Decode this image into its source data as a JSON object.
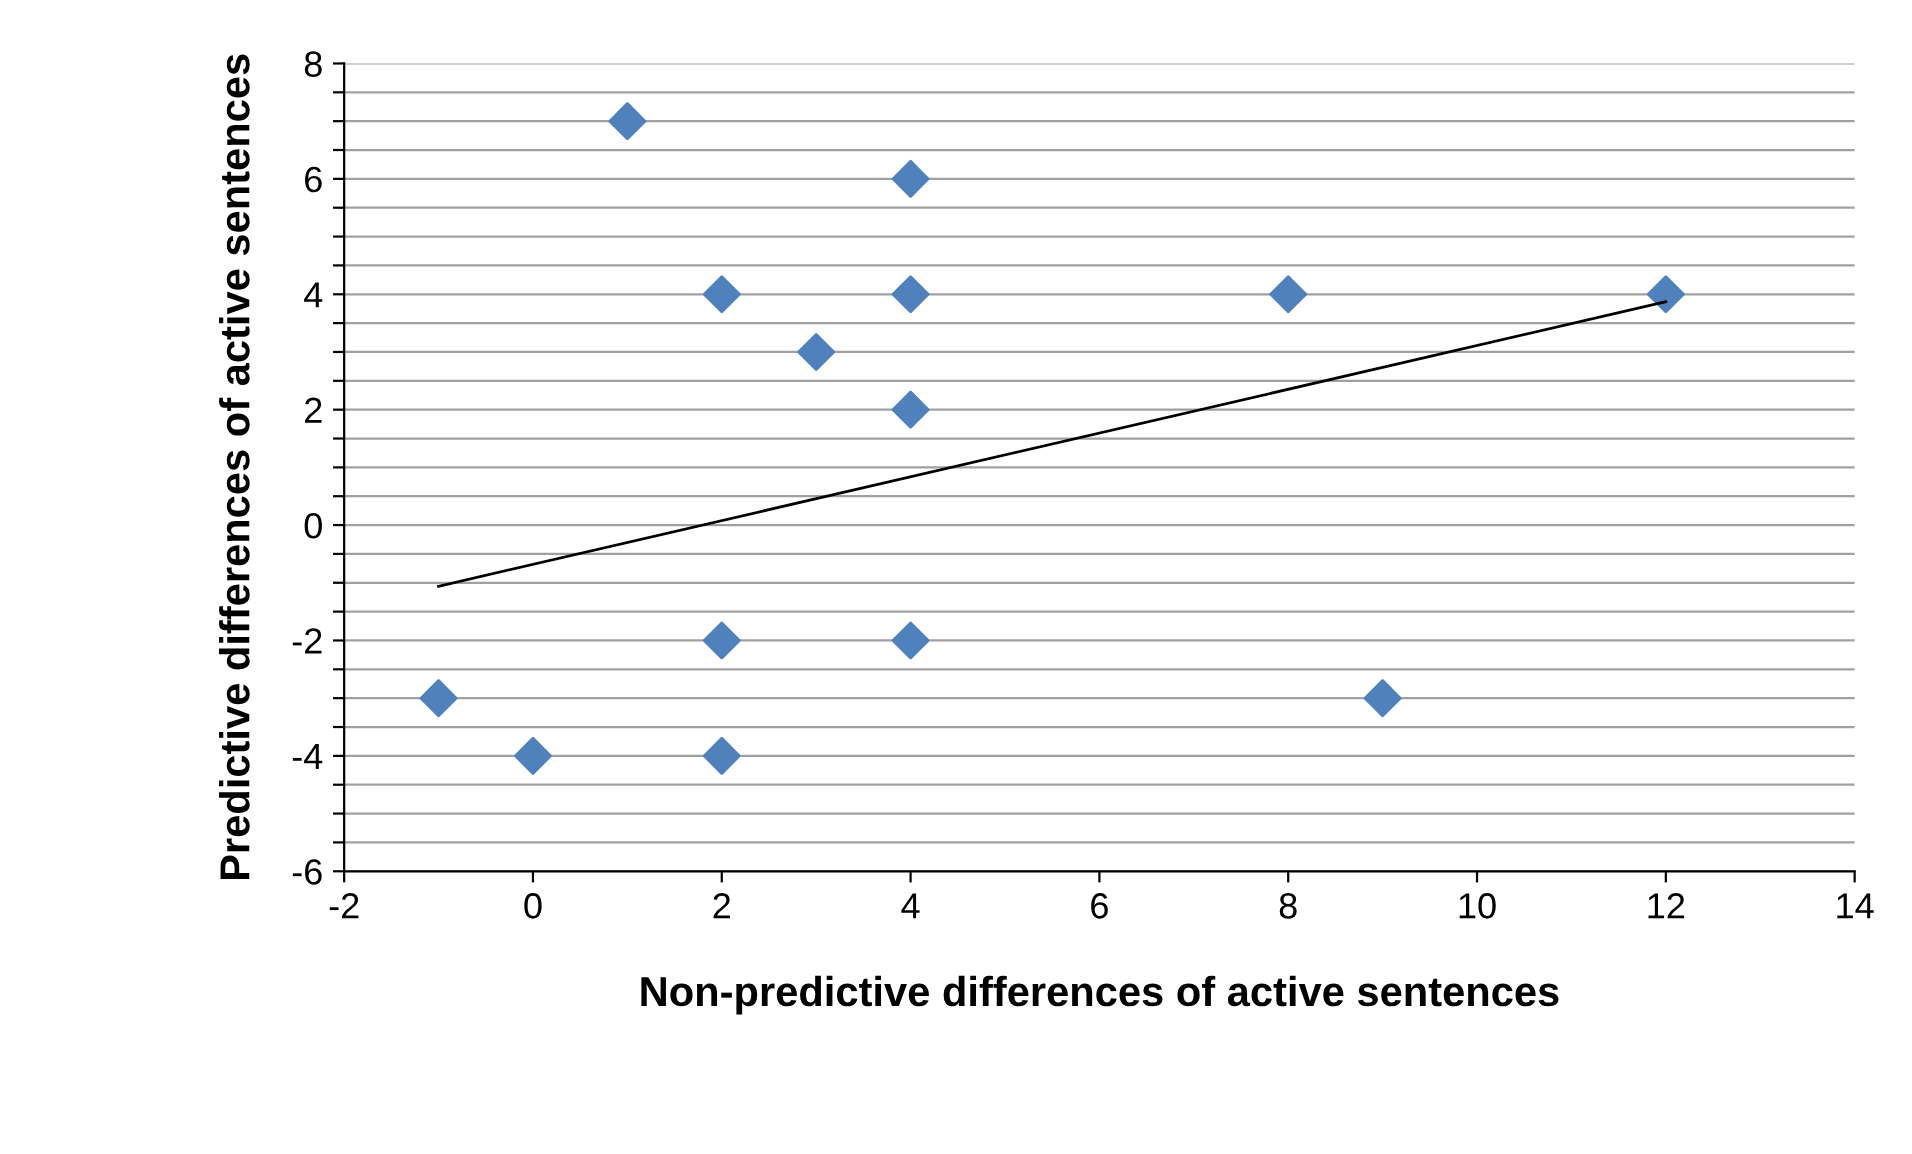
{
  "chart_data": {
    "type": "scatter",
    "xlabel": "Non-predictive differences of active sentences",
    "ylabel": "Predictive differences of active sentences",
    "xlim": [
      -2,
      14
    ],
    "xticks": [
      -2,
      0,
      2,
      4,
      6,
      8,
      10,
      12,
      14
    ],
    "ylim": [
      -6,
      8
    ],
    "yticks": [
      -6,
      {
        "value": -5.5,
        "label": null
      },
      {
        "value": -5,
        "label": null
      },
      {
        "value": -4.5,
        "label": null
      },
      -4,
      {
        "value": -3.5,
        "label": null
      },
      {
        "value": -3,
        "label": null
      },
      {
        "value": -2.5,
        "label": null
      },
      -2,
      {
        "value": -1.5,
        "label": null
      },
      {
        "value": -1,
        "label": null
      },
      {
        "value": -0.5,
        "label": null
      },
      0,
      {
        "value": 0.5,
        "label": null
      },
      {
        "value": 1,
        "label": null
      },
      {
        "value": 1.5,
        "label": null
      },
      2,
      {
        "value": 2.5,
        "label": null
      },
      {
        "value": 3,
        "label": null
      },
      {
        "value": 3.5,
        "label": null
      },
      4,
      {
        "value": 4.5,
        "label": null
      },
      {
        "value": 5,
        "label": null
      },
      {
        "value": 5.5,
        "label": null
      },
      6,
      {
        "value": 6.5,
        "label": null
      },
      {
        "value": 7,
        "label": null
      },
      {
        "value": 7.5,
        "label": null
      },
      8
    ],
    "grid": "y",
    "series": [
      {
        "color": "#4f81bd",
        "marker": "diamond",
        "x": [
          1,
          4,
          2,
          4,
          8,
          12,
          3,
          4,
          2,
          4,
          -1,
          9,
          0,
          2
        ],
        "values": [
          7,
          6,
          4,
          4,
          4,
          4,
          3,
          2,
          -2,
          -2,
          -3,
          -3,
          -4,
          -4
        ]
      },
      {
        "type": "line",
        "marker": "none",
        "color": "#000000",
        "x": [
          -1,
          12
        ],
        "values": [
          -1.06,
          3.87
        ]
      }
    ]
  }
}
